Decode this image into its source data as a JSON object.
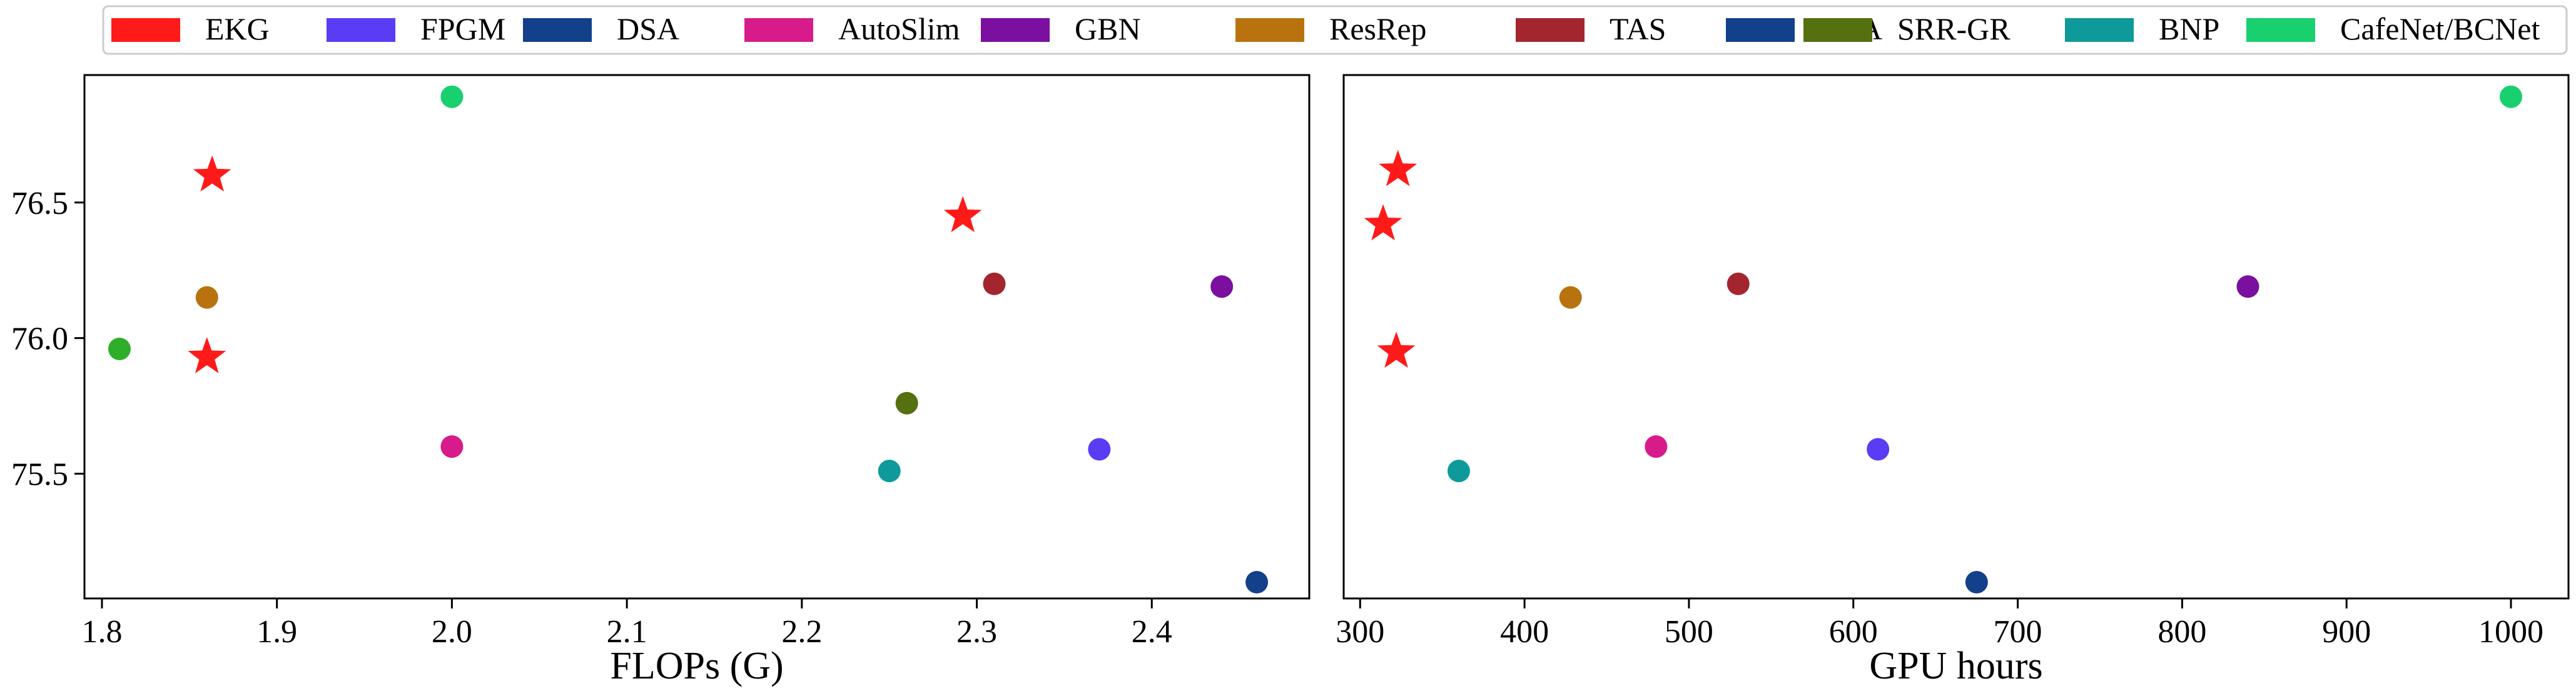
{
  "legend": {
    "placement": "top",
    "entries": [
      {
        "label": "EKG",
        "color": "#ff1a1a"
      },
      {
        "label": "FPGM",
        "color": "#5b3cf5"
      },
      {
        "label": "DSA",
        "color": "#12408a"
      },
      {
        "label": "AutoSlim",
        "color": "#d81b8a"
      },
      {
        "label": "GBN",
        "color": "#7a0fa0"
      },
      {
        "label": "ResRep",
        "color": "#b8730f"
      },
      {
        "label": "TAS",
        "color": "#a3262e"
      },
      {
        "label": "DSA",
        "color": "#12408a"
      },
      {
        "label": "SRR-GR",
        "color": "#55700f"
      },
      {
        "label": "BNP",
        "color": "#0e9a9a"
      },
      {
        "label": "CafeNet/BCNet",
        "color": "#18d06e"
      }
    ]
  },
  "chart_data": [
    {
      "type": "scatter",
      "title": "",
      "xlabel": "FLOPs (G)",
      "ylabel": "",
      "xlim": [
        1.79,
        2.49
      ],
      "ylim": [
        75.04,
        76.97
      ],
      "xticks": [
        "1.8",
        "1.9",
        "2.0",
        "2.1",
        "2.2",
        "2.3",
        "2.4"
      ],
      "yticks": [
        "75.5",
        "76.0",
        "76.5"
      ],
      "grid": false,
      "points": [
        {
          "method": "EKG",
          "x": 1.863,
          "y": 76.6,
          "marker": "star",
          "color": "#ff1a1a"
        },
        {
          "method": "EKG",
          "x": 1.86,
          "y": 75.93,
          "marker": "star",
          "color": "#ff1a1a"
        },
        {
          "method": "EKG",
          "x": 2.292,
          "y": 76.45,
          "marker": "star",
          "color": "#ff1a1a"
        },
        {
          "method": "",
          "x": 1.81,
          "y": 75.96,
          "marker": "circle",
          "color": "#2fae2a"
        },
        {
          "method": "ResRep",
          "x": 1.86,
          "y": 76.15,
          "marker": "circle",
          "color": "#b8730f"
        },
        {
          "method": "CafeNet/BCNet",
          "x": 2.0,
          "y": 76.89,
          "marker": "circle",
          "color": "#18d06e"
        },
        {
          "method": "AutoSlim",
          "x": 2.0,
          "y": 75.6,
          "marker": "circle",
          "color": "#d81b8a"
        },
        {
          "method": "BNP",
          "x": 2.25,
          "y": 75.51,
          "marker": "circle",
          "color": "#0e9a9a"
        },
        {
          "method": "SRR-GR",
          "x": 2.26,
          "y": 75.76,
          "marker": "circle",
          "color": "#55700f"
        },
        {
          "method": "TAS",
          "x": 2.31,
          "y": 76.2,
          "marker": "circle",
          "color": "#a3262e"
        },
        {
          "method": "FPGM",
          "x": 2.37,
          "y": 75.59,
          "marker": "circle",
          "color": "#5b3cf5"
        },
        {
          "method": "GBN",
          "x": 2.44,
          "y": 76.19,
          "marker": "circle",
          "color": "#7a0fa0"
        },
        {
          "method": "DSA",
          "x": 2.46,
          "y": 75.1,
          "marker": "circle",
          "color": "#12408a"
        }
      ]
    },
    {
      "type": "scatter",
      "title": "",
      "xlabel": "GPU hours",
      "ylabel": "",
      "xlim": [
        290,
        1035
      ],
      "ylim": [
        75.04,
        76.97
      ],
      "xticks": [
        "300",
        "400",
        "500",
        "600",
        "700",
        "800",
        "900",
        "1000"
      ],
      "yticks": [],
      "grid": false,
      "points": [
        {
          "method": "EKG",
          "x": 323,
          "y": 76.62,
          "marker": "star",
          "color": "#ff1a1a"
        },
        {
          "method": "EKG",
          "x": 314,
          "y": 76.42,
          "marker": "star",
          "color": "#ff1a1a"
        },
        {
          "method": "EKG",
          "x": 322,
          "y": 75.95,
          "marker": "star",
          "color": "#ff1a1a"
        },
        {
          "method": "BNP",
          "x": 360,
          "y": 75.51,
          "marker": "circle",
          "color": "#0e9a9a"
        },
        {
          "method": "ResRep",
          "x": 428,
          "y": 76.15,
          "marker": "circle",
          "color": "#b8730f"
        },
        {
          "method": "AutoSlim",
          "x": 480,
          "y": 75.6,
          "marker": "circle",
          "color": "#d81b8a"
        },
        {
          "method": "TAS",
          "x": 530,
          "y": 76.2,
          "marker": "circle",
          "color": "#a3262e"
        },
        {
          "method": "FPGM",
          "x": 615,
          "y": 75.59,
          "marker": "circle",
          "color": "#5b3cf5"
        },
        {
          "method": "DSA",
          "x": 675,
          "y": 75.1,
          "marker": "circle",
          "color": "#12408a"
        },
        {
          "method": "GBN",
          "x": 840,
          "y": 76.19,
          "marker": "circle",
          "color": "#7a0fa0"
        },
        {
          "method": "CafeNet/BCNet",
          "x": 1000,
          "y": 76.89,
          "marker": "circle",
          "color": "#18d06e"
        }
      ]
    }
  ]
}
